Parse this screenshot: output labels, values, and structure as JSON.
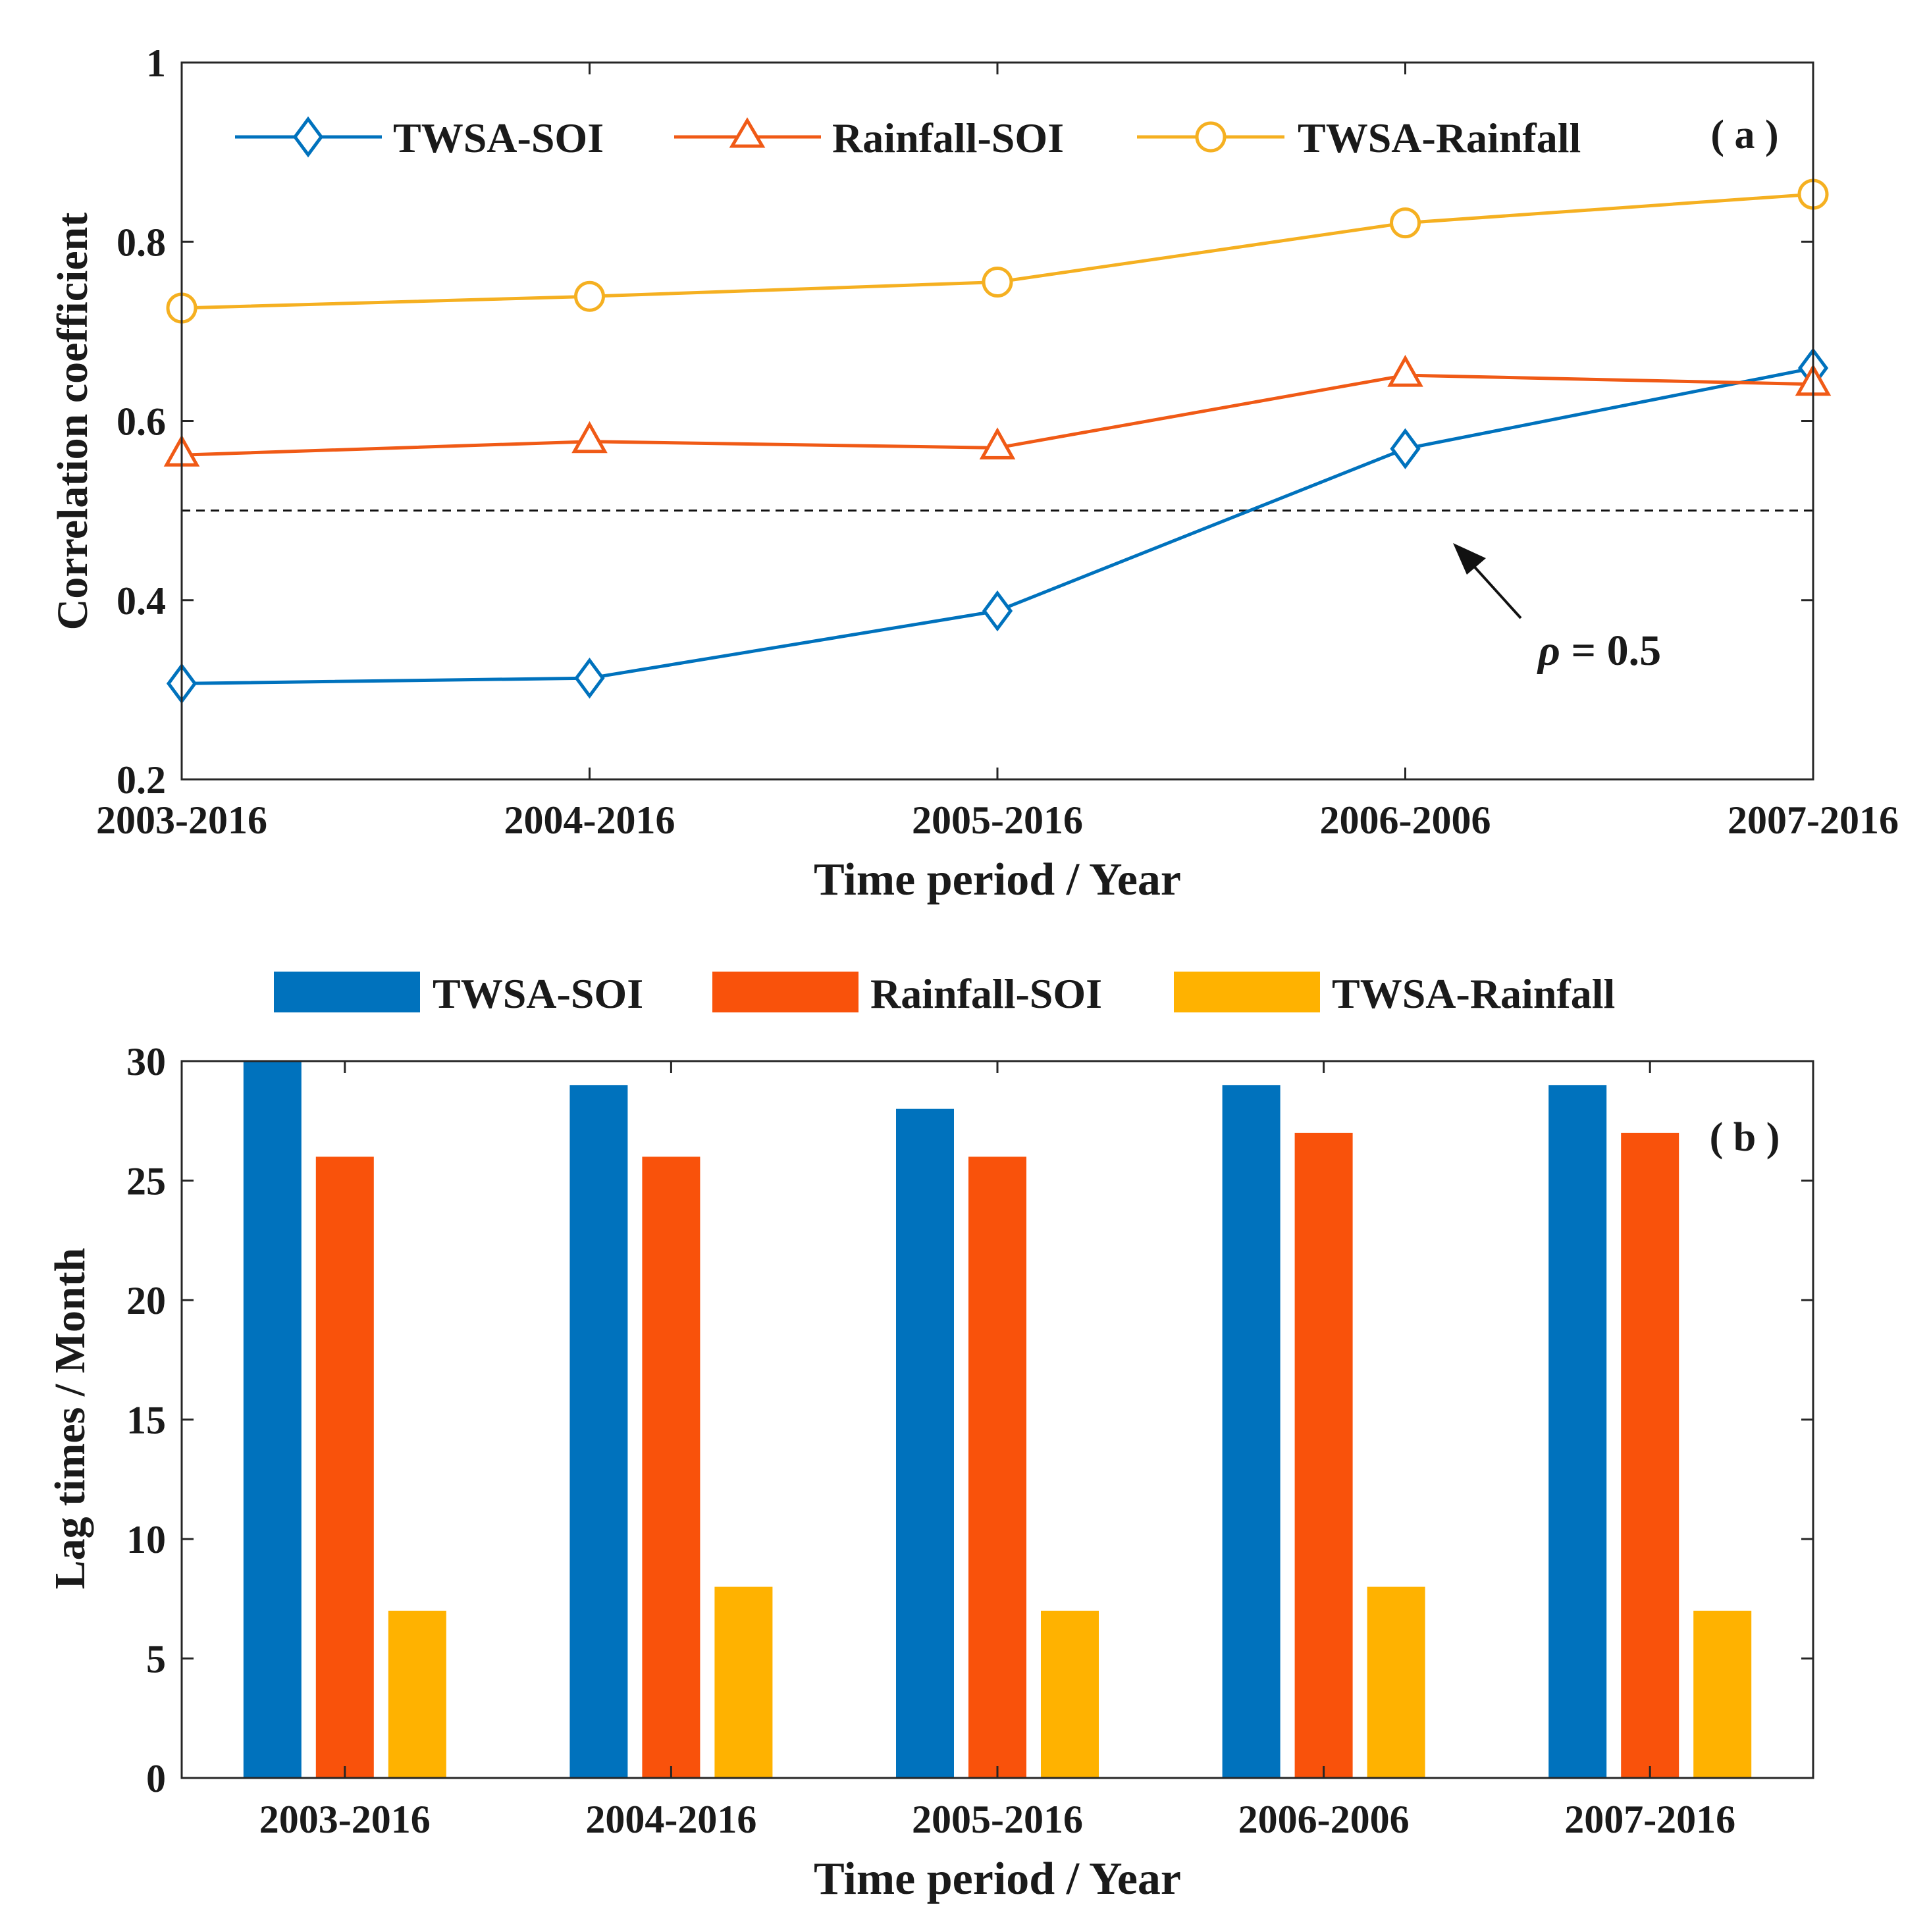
{
  "chart_data": [
    {
      "type": "line",
      "panel_label": "( a )",
      "categories": [
        "2003-2016",
        "2004-2016",
        "2005-2016",
        "2006-2006",
        "2007-2016"
      ],
      "series": [
        {
          "name": "TWSA-SOI",
          "color": "#0072BD",
          "marker": "diamond",
          "values": [
            0.307,
            0.313,
            0.388,
            0.569,
            0.659
          ]
        },
        {
          "name": "Rainfall-SOI",
          "color": "#F05A16",
          "marker": "triangle",
          "values": [
            0.562,
            0.577,
            0.57,
            0.651,
            0.641
          ]
        },
        {
          "name": "TWSA-Rainfall",
          "color": "#F5B021",
          "marker": "circle",
          "values": [
            0.726,
            0.739,
            0.755,
            0.821,
            0.853
          ]
        }
      ],
      "xlabel": "Time period / Year",
      "ylabel": "Correlation coefficient",
      "ylim": [
        0.2,
        1.0
      ],
      "yticks": [
        0.2,
        0.4,
        0.6,
        0.8,
        1.0
      ],
      "ytick_labels": [
        "0.2",
        "0.4",
        "0.6",
        "0.8",
        "1"
      ],
      "reference_line": {
        "value": 0.5,
        "style": "dashed",
        "annotation_prefix": "ρ",
        "annotation_suffix": " = 0.5"
      },
      "legend_placement": "top"
    },
    {
      "type": "bar",
      "panel_label": "( b )",
      "categories": [
        "2003-2016",
        "2004-2016",
        "2005-2016",
        "2006-2006",
        "2007-2016"
      ],
      "series": [
        {
          "name": "TWSA-SOI",
          "color": "#0072BD",
          "values": [
            30,
            29,
            28,
            29,
            29
          ]
        },
        {
          "name": "Rainfall-SOI",
          "color": "#F9520B",
          "values": [
            26,
            26,
            26,
            27,
            27
          ]
        },
        {
          "name": "TWSA-Rainfall",
          "color": "#FFB200",
          "values": [
            7,
            8,
            7,
            8,
            7
          ]
        }
      ],
      "xlabel": "Time period / Year",
      "ylabel": "Lag times / Month",
      "ylim": [
        0,
        30
      ],
      "yticks": [
        0,
        5,
        10,
        15,
        20,
        25,
        30
      ],
      "ytick_labels": [
        "0",
        "5",
        "10",
        "15",
        "20",
        "25",
        "30"
      ],
      "legend_placement": "above plot"
    }
  ]
}
